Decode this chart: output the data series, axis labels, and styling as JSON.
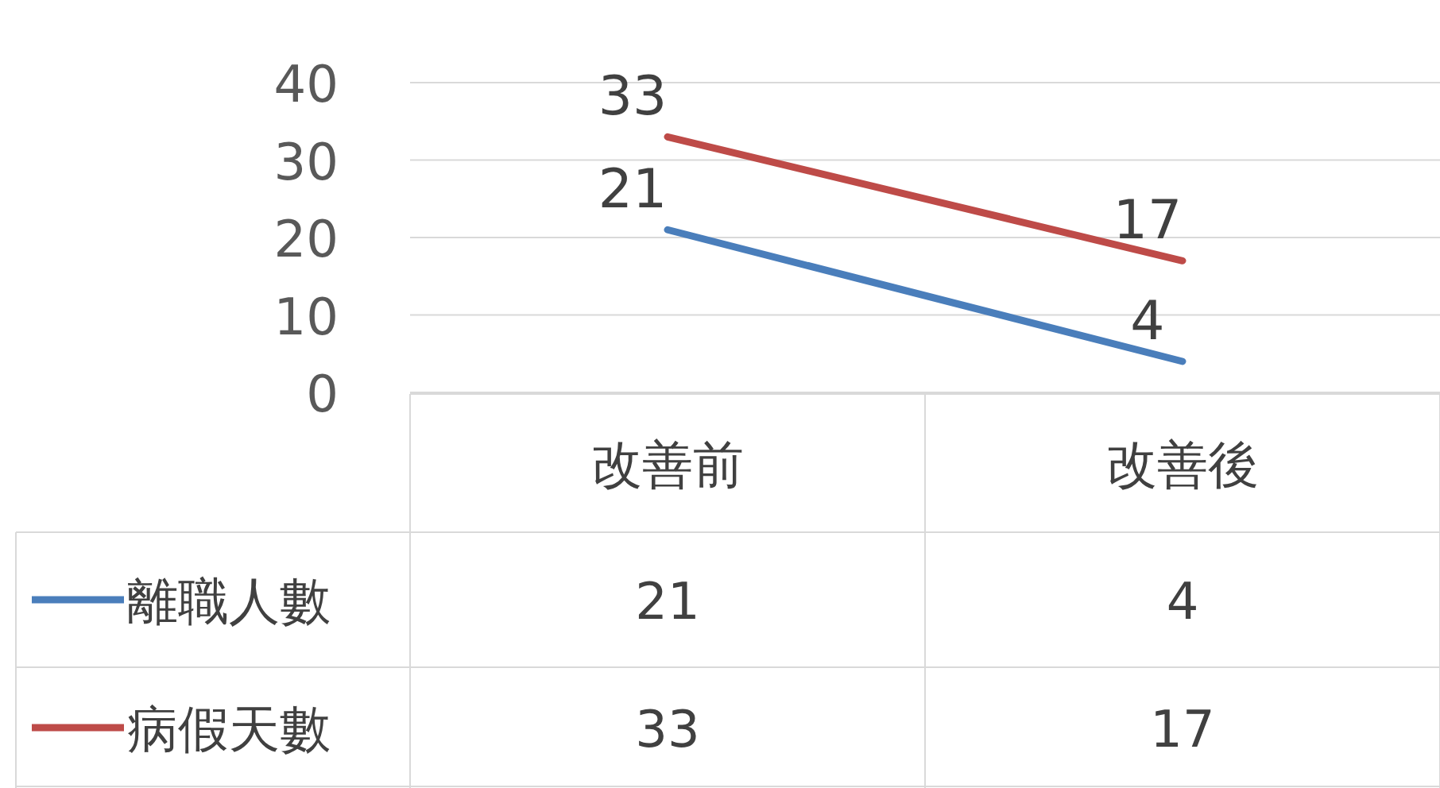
{
  "chart_data": {
    "type": "line",
    "categories": [
      "改善前",
      "改善後"
    ],
    "series": [
      {
        "name": "離職人數",
        "color": "#4a7ebb",
        "values": [
          21,
          4
        ],
        "value_labels": [
          "21",
          "4"
        ]
      },
      {
        "name": "病假天數",
        "color": "#be4b48",
        "values": [
          33,
          17
        ],
        "value_labels": [
          "33",
          "17"
        ]
      }
    ],
    "ylim": [
      0,
      40
    ],
    "yticks": [
      0,
      10,
      20,
      30,
      40
    ],
    "grid": "y",
    "legend": "bottom left",
    "data_labels": true,
    "marker": "none",
    "line_style": "solid"
  }
}
